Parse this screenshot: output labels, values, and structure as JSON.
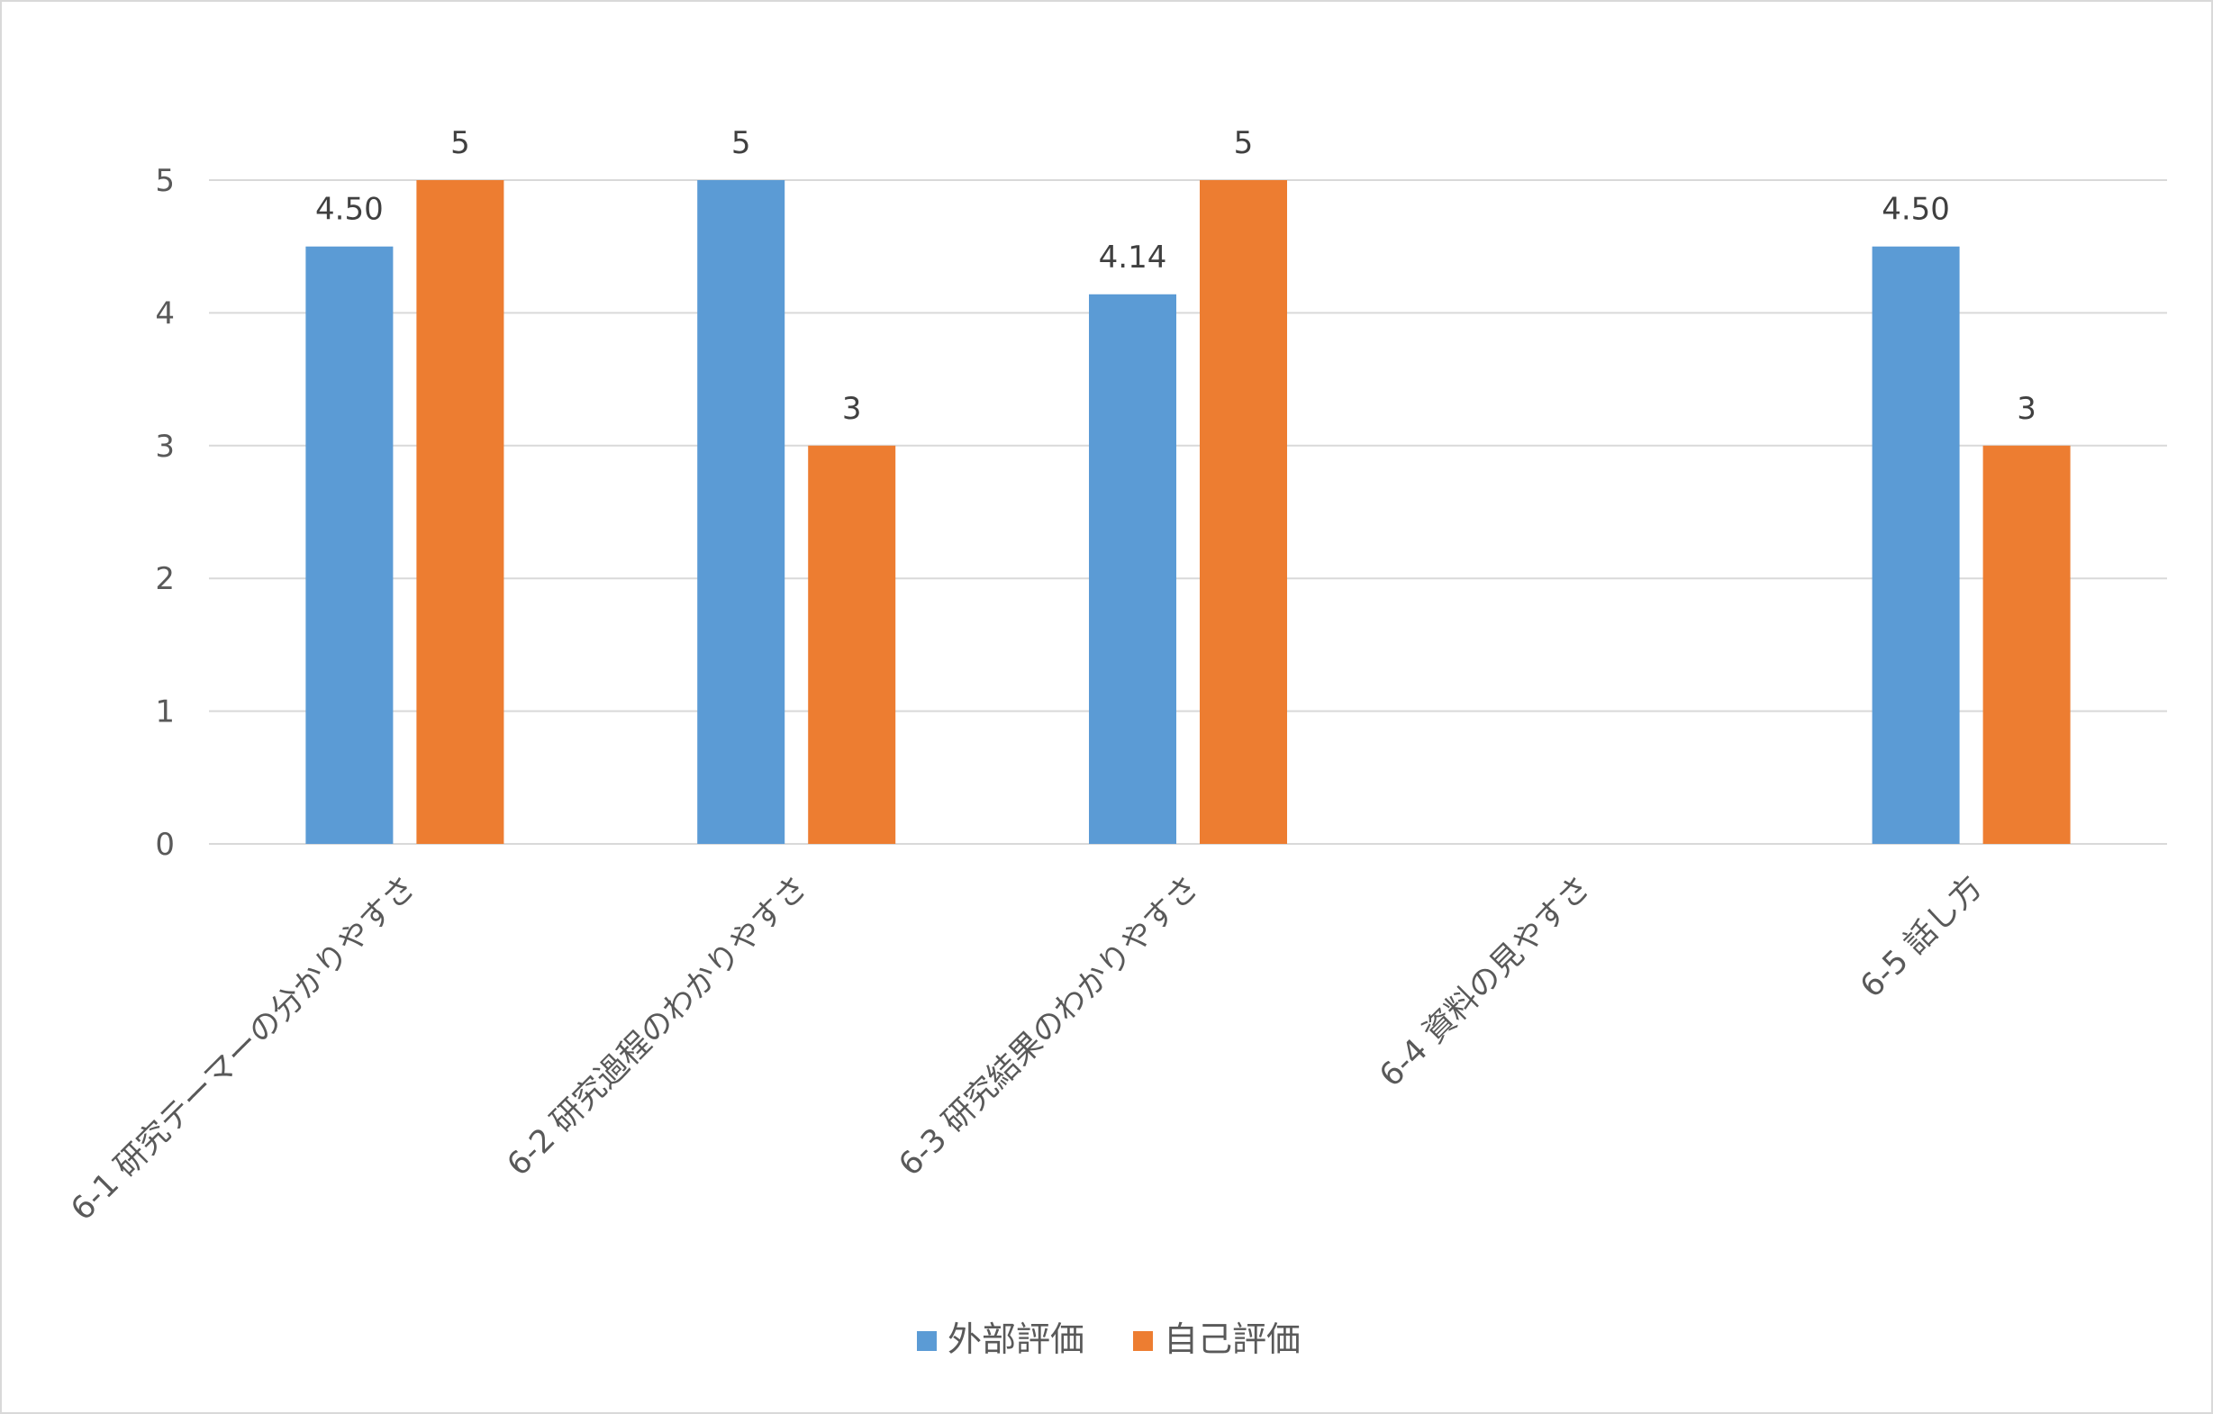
{
  "chart_data": {
    "type": "bar",
    "categories": [
      "6-1 研究テーマーの分かりやすさ",
      "6-2 研究過程のわかりやすさ",
      "6-3 研究結果のわかりやすさ",
      "6-4 資料の見やすさ",
      "6-5 話し方"
    ],
    "series": [
      {
        "name": "外部評価",
        "color": "#5b9bd5",
        "values": [
          4.5,
          5,
          4.14,
          null,
          4.5
        ],
        "labels": [
          "4.50",
          "5",
          "4.14",
          "",
          "4.50"
        ]
      },
      {
        "name": "自己評価",
        "color": "#ed7d31",
        "values": [
          5,
          3,
          5,
          null,
          3
        ],
        "labels": [
          "5",
          "3",
          "5",
          "",
          "3"
        ]
      }
    ],
    "y_ticks": [
      "0",
      "1",
      "2",
      "3",
      "4",
      "5"
    ],
    "ylim": [
      0,
      5
    ],
    "grid": true,
    "legend_position": "bottom",
    "title": "",
    "xlabel": "",
    "ylabel": ""
  }
}
